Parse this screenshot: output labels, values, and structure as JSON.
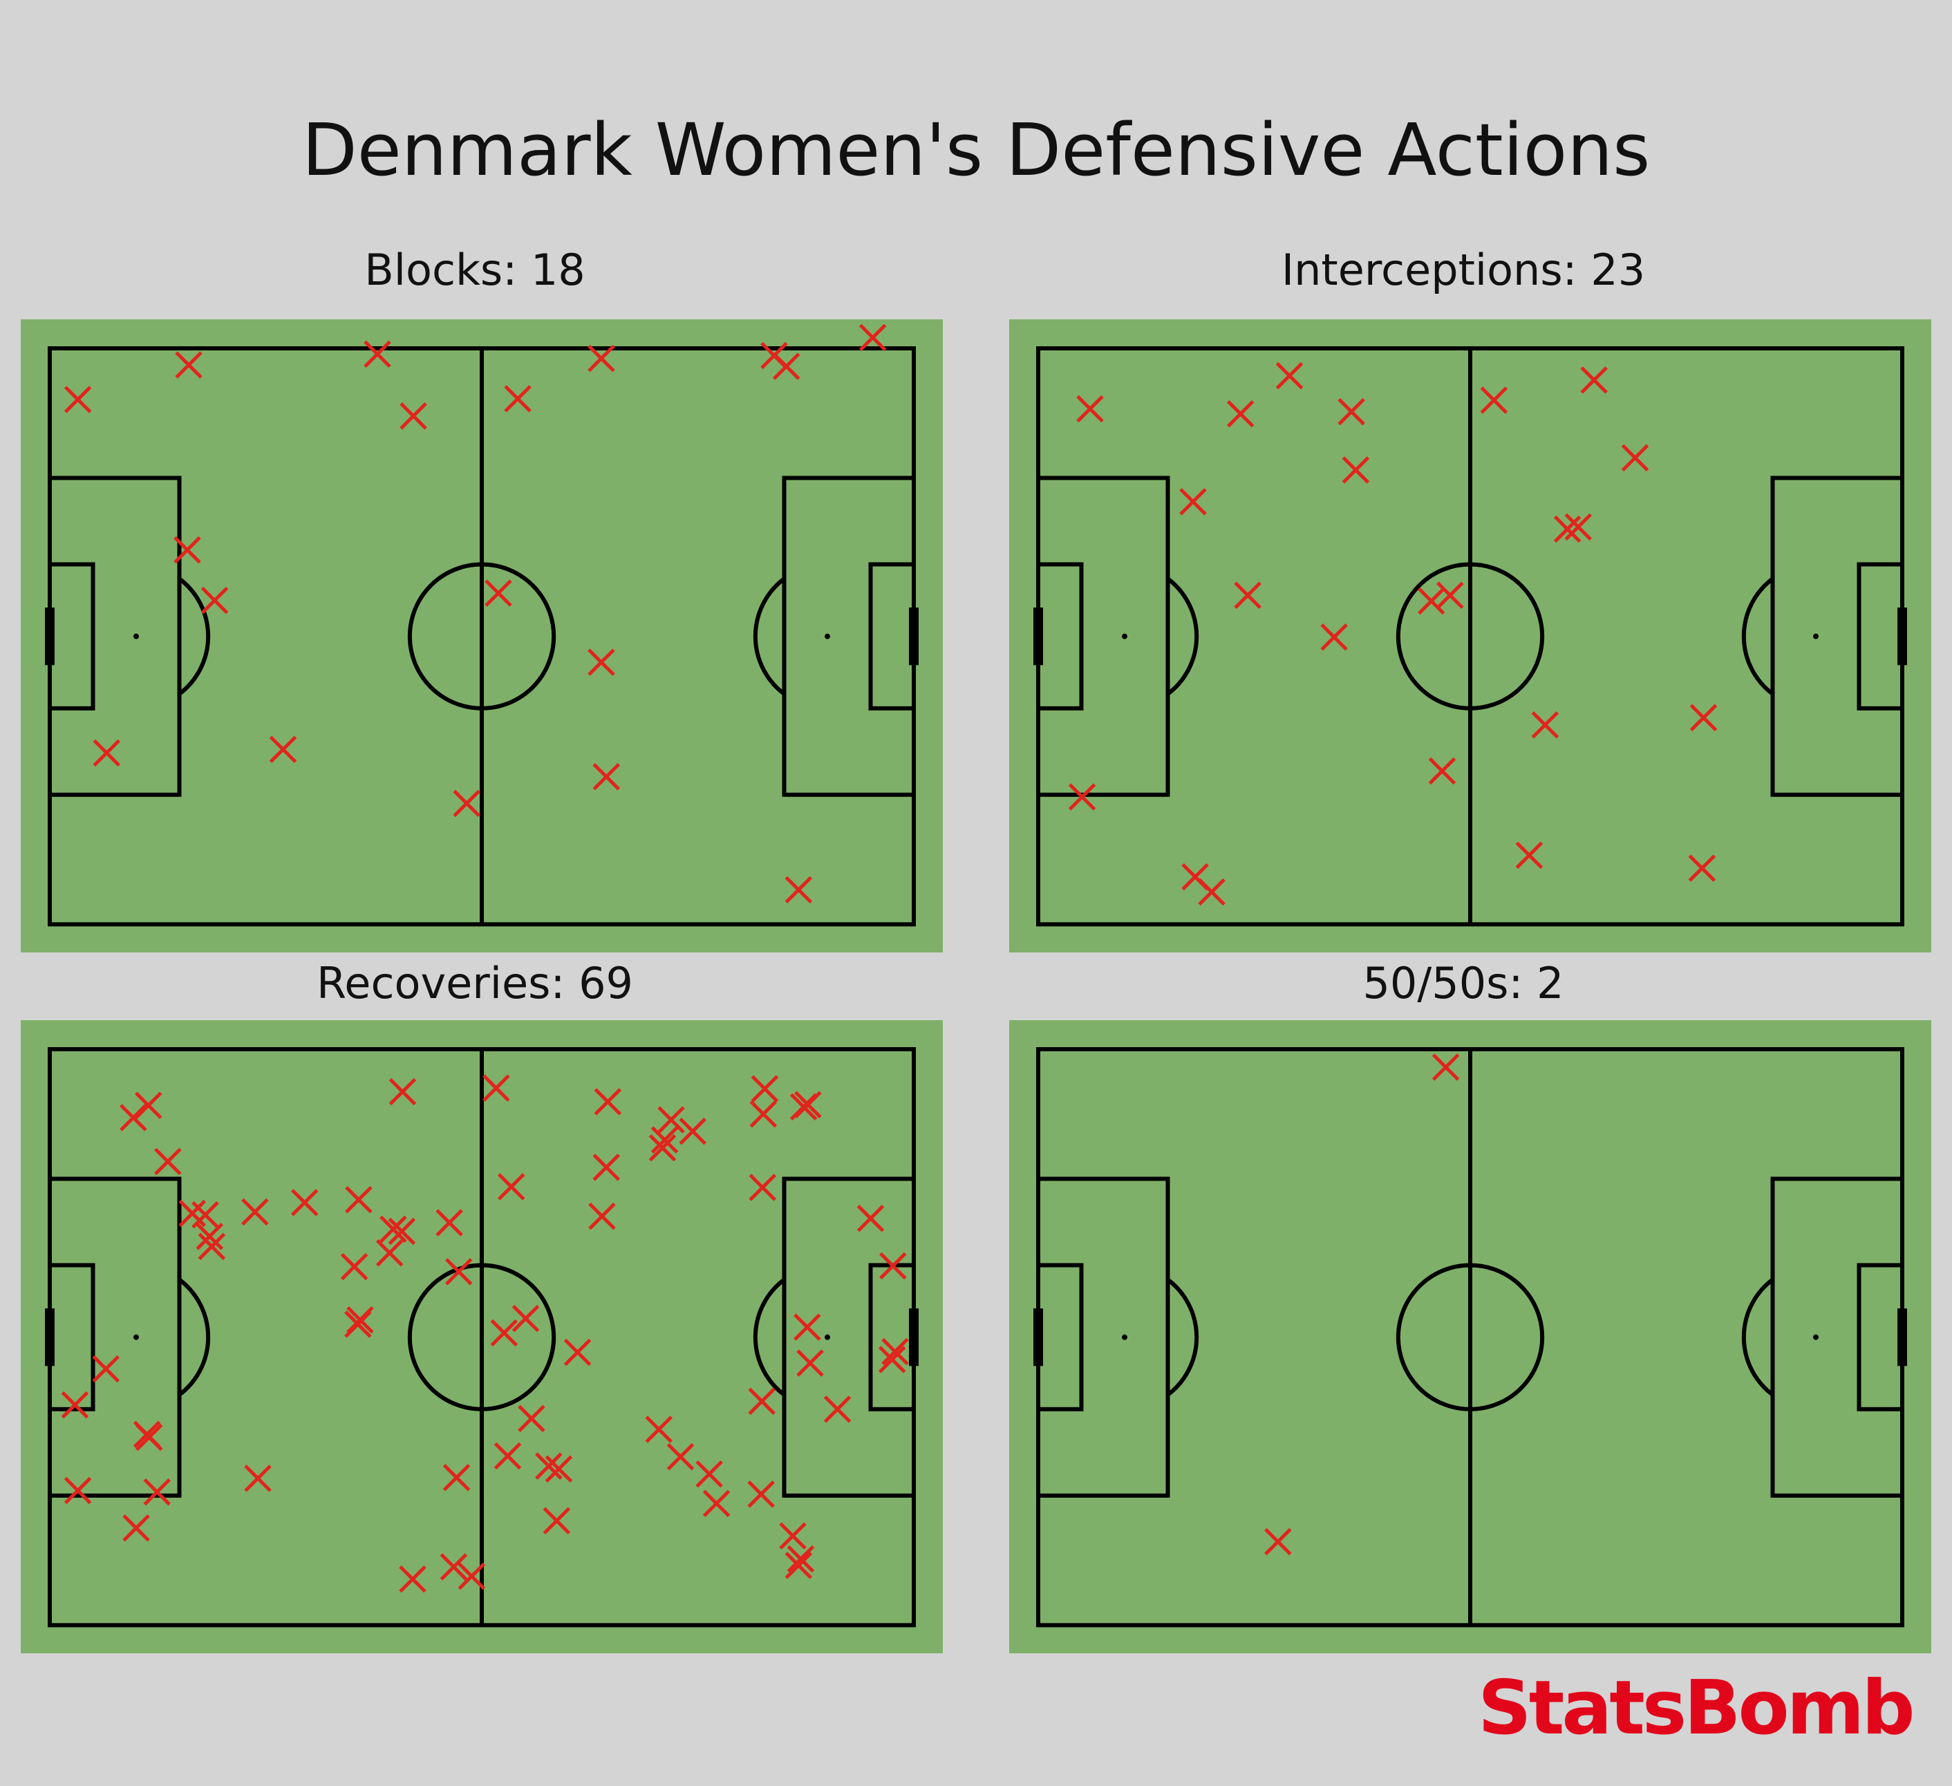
{
  "title": "Denmark Women's Defensive Actions",
  "brand": {
    "logo_text": "StatsBomb",
    "logo_color": "#e2061b"
  },
  "colors": {
    "background": "#d4d4d4",
    "pitch": "#7fb069",
    "lines": "#000000",
    "marker": "#e0251c"
  },
  "chart_data": [
    {
      "type": "scatter",
      "title": "Blocks: 18",
      "marker": "x",
      "xlim": [
        0,
        120
      ],
      "ylim": [
        0,
        80
      ],
      "points": [
        {
          "x": 3.9,
          "y": 7.1
        },
        {
          "x": 19.3,
          "y": 2.3
        },
        {
          "x": 45.5,
          "y": 0.8
        },
        {
          "x": 50.5,
          "y": 9.4
        },
        {
          "x": 19.1,
          "y": 28.0
        },
        {
          "x": 22.9,
          "y": 35.0
        },
        {
          "x": 7.9,
          "y": 56.2
        },
        {
          "x": 32.4,
          "y": 55.7
        },
        {
          "x": 57.9,
          "y": 63.2
        },
        {
          "x": 65.0,
          "y": 7.0
        },
        {
          "x": 76.6,
          "y": 1.4
        },
        {
          "x": 62.3,
          "y": 34.0
        },
        {
          "x": 76.6,
          "y": 43.6
        },
        {
          "x": 77.3,
          "y": 59.5
        },
        {
          "x": 100.6,
          "y": 1.0
        },
        {
          "x": 102.3,
          "y": 2.5
        },
        {
          "x": 114.3,
          "y": -1.5
        },
        {
          "x": 104.0,
          "y": 75.2
        }
      ]
    },
    {
      "type": "scatter",
      "title": "Interceptions: 23",
      "marker": "x",
      "xlim": [
        0,
        120
      ],
      "ylim": [
        0,
        80
      ],
      "points": [
        {
          "x": 7.2,
          "y": 8.4
        },
        {
          "x": 28.1,
          "y": 9.1
        },
        {
          "x": 34.9,
          "y": 3.8
        },
        {
          "x": 43.5,
          "y": 8.8
        },
        {
          "x": 44.1,
          "y": 16.9
        },
        {
          "x": 21.5,
          "y": 21.3
        },
        {
          "x": 29.1,
          "y": 34.3
        },
        {
          "x": 41.1,
          "y": 40.1
        },
        {
          "x": 6.1,
          "y": 62.3
        },
        {
          "x": 21.8,
          "y": 73.4
        },
        {
          "x": 24.1,
          "y": 75.5
        },
        {
          "x": 54.6,
          "y": 35.1
        },
        {
          "x": 57.2,
          "y": 34.3
        },
        {
          "x": 56.1,
          "y": 58.7
        },
        {
          "x": 63.3,
          "y": 7.2
        },
        {
          "x": 77.2,
          "y": 4.4
        },
        {
          "x": 82.9,
          "y": 15.2
        },
        {
          "x": 73.5,
          "y": 25.1
        },
        {
          "x": 75.0,
          "y": 24.8
        },
        {
          "x": 70.4,
          "y": 52.3
        },
        {
          "x": 92.4,
          "y": 51.3
        },
        {
          "x": 68.2,
          "y": 70.4
        },
        {
          "x": 92.2,
          "y": 72.2
        }
      ]
    },
    {
      "type": "scatter",
      "title": "Recoveries: 69",
      "marker": "x",
      "xlim": [
        0,
        120
      ],
      "ylim": [
        0,
        80
      ],
      "points": [
        {
          "x": 11.6,
          "y": 9.5
        },
        {
          "x": 13.7,
          "y": 7.8
        },
        {
          "x": 16.4,
          "y": 15.6
        },
        {
          "x": 19.8,
          "y": 22.8
        },
        {
          "x": 21.6,
          "y": 23.0
        },
        {
          "x": 22.2,
          "y": 26.0
        },
        {
          "x": 22.5,
          "y": 27.4
        },
        {
          "x": 28.5,
          "y": 22.6
        },
        {
          "x": 35.4,
          "y": 21.3
        },
        {
          "x": 42.9,
          "y": 20.9
        },
        {
          "x": 49.0,
          "y": 5.9
        },
        {
          "x": 42.3,
          "y": 30.2
        },
        {
          "x": 47.7,
          "y": 25.0
        },
        {
          "x": 48.9,
          "y": 25.3
        },
        {
          "x": 47.2,
          "y": 28.3
        },
        {
          "x": 55.5,
          "y": 24.1
        },
        {
          "x": 56.8,
          "y": 30.9
        },
        {
          "x": 43.1,
          "y": 37.6
        },
        {
          "x": 42.8,
          "y": 38.2
        },
        {
          "x": 7.8,
          "y": 44.4
        },
        {
          "x": 3.5,
          "y": 49.4
        },
        {
          "x": 13.8,
          "y": 53.9
        },
        {
          "x": 13.5,
          "y": 53.5
        },
        {
          "x": 3.9,
          "y": 61.3
        },
        {
          "x": 14.9,
          "y": 61.5
        },
        {
          "x": 12.0,
          "y": 66.5
        },
        {
          "x": 28.9,
          "y": 59.6
        },
        {
          "x": 56.5,
          "y": 59.5
        },
        {
          "x": 50.4,
          "y": 73.6
        },
        {
          "x": 56.1,
          "y": 71.9
        },
        {
          "x": 58.6,
          "y": 73.2
        },
        {
          "x": 62.0,
          "y": 5.4
        },
        {
          "x": 64.1,
          "y": 19.1
        },
        {
          "x": 66.1,
          "y": 37.4
        },
        {
          "x": 63.1,
          "y": 39.4
        },
        {
          "x": 73.3,
          "y": 42.1
        },
        {
          "x": 66.9,
          "y": 51.3
        },
        {
          "x": 63.6,
          "y": 56.5
        },
        {
          "x": 69.3,
          "y": 57.9
        },
        {
          "x": 70.7,
          "y": 58.3
        },
        {
          "x": 70.4,
          "y": 65.5
        },
        {
          "x": 77.5,
          "y": 7.3
        },
        {
          "x": 77.3,
          "y": 16.4
        },
        {
          "x": 76.7,
          "y": 23.2
        },
        {
          "x": 86.3,
          "y": 9.8
        },
        {
          "x": 85.4,
          "y": 12.6
        },
        {
          "x": 85.1,
          "y": 13.7
        },
        {
          "x": 89.3,
          "y": 11.4
        },
        {
          "x": 84.6,
          "y": 52.8
        },
        {
          "x": 87.6,
          "y": 56.6
        },
        {
          "x": 91.6,
          "y": 59.0
        },
        {
          "x": 92.6,
          "y": 63.1
        },
        {
          "x": 99.3,
          "y": 5.5
        },
        {
          "x": 99.1,
          "y": 9.0
        },
        {
          "x": 105.3,
          "y": 7.7
        },
        {
          "x": 104.7,
          "y": 8.0
        },
        {
          "x": 99.0,
          "y": 19.2
        },
        {
          "x": 114.0,
          "y": 23.5
        },
        {
          "x": 117.1,
          "y": 30.1
        },
        {
          "x": 105.2,
          "y": 38.6
        },
        {
          "x": 105.6,
          "y": 43.6
        },
        {
          "x": 117.4,
          "y": 42.0
        },
        {
          "x": 109.4,
          "y": 50.0
        },
        {
          "x": 98.9,
          "y": 48.9
        },
        {
          "x": 98.8,
          "y": 61.8
        },
        {
          "x": 103.2,
          "y": 67.6
        },
        {
          "x": 104.3,
          "y": 70.8
        },
        {
          "x": 104.0,
          "y": 71.7
        },
        {
          "x": 117.0,
          "y": 43.1
        }
      ]
    },
    {
      "type": "scatter",
      "title": "50/50s: 2",
      "marker": "x",
      "xlim": [
        0,
        120
      ],
      "ylim": [
        0,
        80
      ],
      "points": [
        {
          "x": 56.6,
          "y": 2.5
        },
        {
          "x": 33.3,
          "y": 68.4
        }
      ]
    }
  ]
}
